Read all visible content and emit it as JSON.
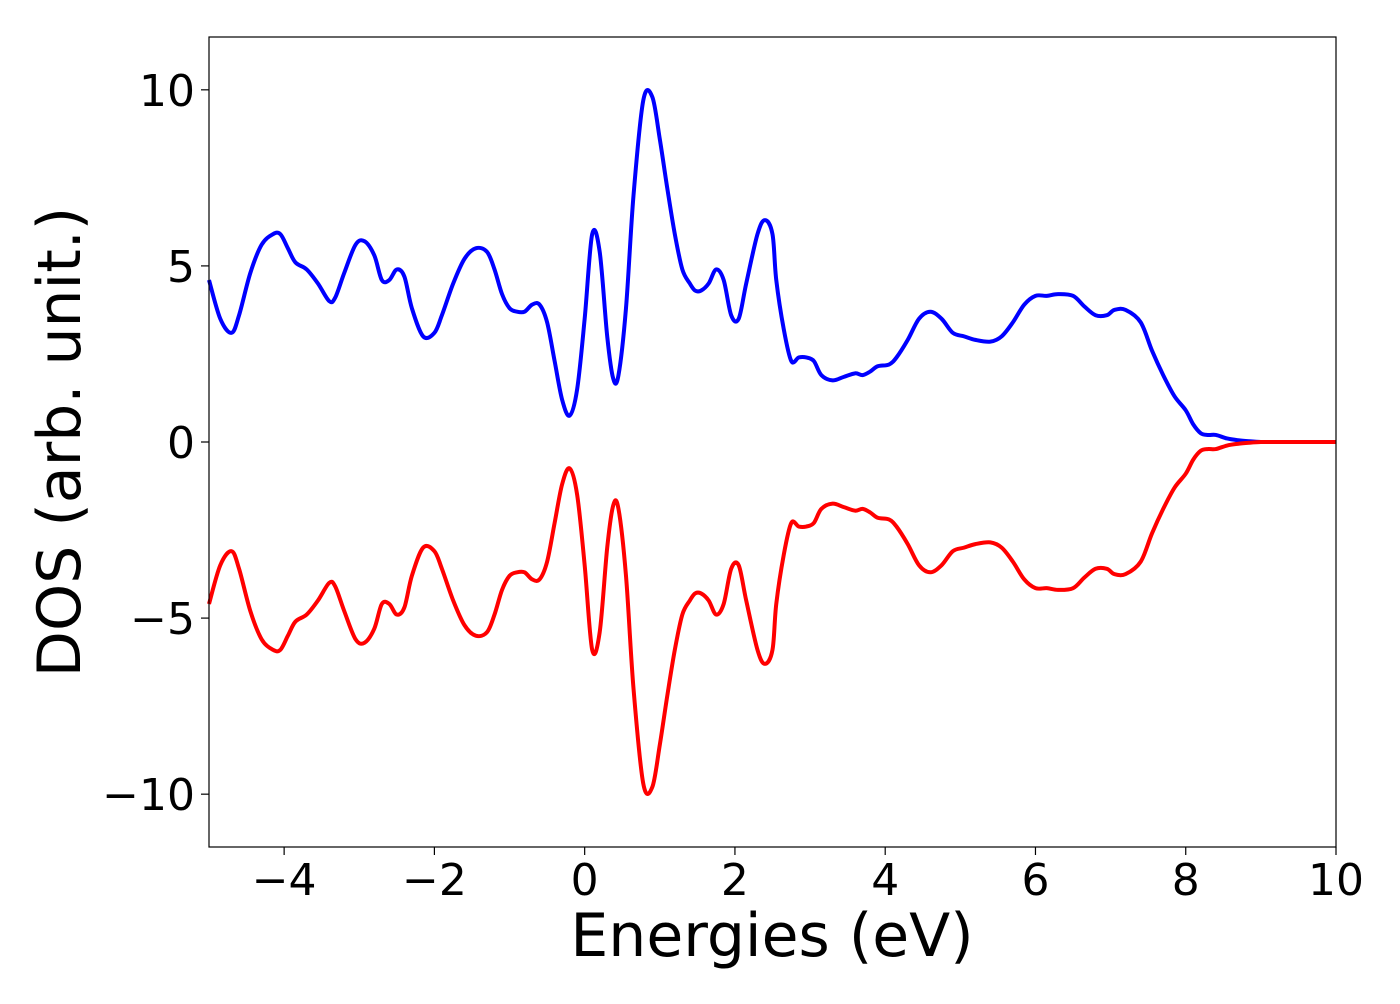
{
  "chart_data": {
    "type": "line",
    "title": "",
    "xlabel": "Energies (eV)",
    "ylabel": "DOS (arb. unit.)",
    "xlim": [
      -5,
      10
    ],
    "ylim": [
      -11.5,
      11.5
    ],
    "xticks": [
      -4,
      -2,
      0,
      2,
      4,
      6,
      8,
      10
    ],
    "xtick_labels": [
      "−4",
      "−2",
      "0",
      "2",
      "4",
      "6",
      "8",
      "10"
    ],
    "yticks": [
      10,
      5,
      0,
      -5,
      -10
    ],
    "ytick_labels": [
      "10",
      "5",
      "0",
      "−5",
      "−10"
    ],
    "grid": false,
    "legend": "none",
    "series": [
      {
        "color": "#0000ff",
        "x": [
          -5.0,
          -4.85,
          -4.7,
          -4.6,
          -4.45,
          -4.3,
          -4.15,
          -4.05,
          -3.95,
          -3.85,
          -3.7,
          -3.55,
          -3.4,
          -3.32,
          -3.2,
          -3.05,
          -2.93,
          -2.8,
          -2.7,
          -2.6,
          -2.5,
          -2.4,
          -2.3,
          -2.15,
          -2.0,
          -1.9,
          -1.75,
          -1.6,
          -1.45,
          -1.3,
          -1.2,
          -1.1,
          -1.0,
          -0.9,
          -0.8,
          -0.7,
          -0.6,
          -0.5,
          -0.4,
          -0.3,
          -0.2,
          -0.1,
          0.0,
          0.1,
          0.2,
          0.3,
          0.38,
          0.45,
          0.55,
          0.65,
          0.78,
          0.9,
          1.0,
          1.1,
          1.2,
          1.3,
          1.4,
          1.47,
          1.55,
          1.65,
          1.75,
          1.85,
          1.95,
          2.05,
          2.15,
          2.3,
          2.4,
          2.5,
          2.55,
          2.65,
          2.75,
          2.85,
          2.95,
          3.05,
          3.15,
          3.3,
          3.45,
          3.6,
          3.7,
          3.8,
          3.9,
          4.05,
          4.15,
          4.3,
          4.45,
          4.6,
          4.75,
          4.9,
          5.05,
          5.2,
          5.4,
          5.55,
          5.7,
          5.85,
          6.0,
          6.15,
          6.3,
          6.5,
          6.65,
          6.8,
          6.95,
          7.05,
          7.2,
          7.4,
          7.55,
          7.7,
          7.85,
          8.0,
          8.1,
          8.2,
          8.3,
          8.4,
          8.55,
          8.7,
          8.85,
          9.0,
          9.15,
          9.3,
          9.45,
          9.6,
          9.8,
          10.0
        ],
        "y": [
          4.6,
          3.5,
          3.1,
          3.6,
          4.8,
          5.6,
          5.9,
          5.9,
          5.5,
          5.1,
          4.9,
          4.5,
          4.0,
          4.1,
          4.8,
          5.6,
          5.7,
          5.3,
          4.6,
          4.6,
          4.9,
          4.7,
          3.8,
          3.0,
          3.1,
          3.6,
          4.5,
          5.2,
          5.5,
          5.4,
          4.9,
          4.2,
          3.8,
          3.7,
          3.7,
          3.9,
          3.9,
          3.4,
          2.3,
          1.2,
          0.75,
          1.5,
          3.5,
          5.9,
          5.4,
          3.0,
          1.8,
          1.9,
          3.8,
          7.0,
          9.7,
          9.8,
          8.6,
          7.2,
          5.9,
          4.9,
          4.5,
          4.3,
          4.3,
          4.5,
          4.9,
          4.6,
          3.6,
          3.5,
          4.5,
          5.9,
          6.3,
          5.9,
          4.6,
          3.2,
          2.3,
          2.4,
          2.4,
          2.3,
          1.9,
          1.75,
          1.85,
          1.95,
          1.9,
          2.0,
          2.15,
          2.2,
          2.4,
          2.9,
          3.5,
          3.7,
          3.5,
          3.1,
          3.0,
          2.9,
          2.85,
          3.0,
          3.4,
          3.9,
          4.15,
          4.15,
          4.2,
          4.15,
          3.85,
          3.6,
          3.6,
          3.75,
          3.75,
          3.4,
          2.6,
          1.9,
          1.3,
          0.9,
          0.5,
          0.25,
          0.2,
          0.2,
          0.1,
          0.05,
          0.02,
          0.0,
          0.0,
          0.0,
          0.0,
          0.0,
          0.0,
          0.0
        ]
      },
      {
        "color": "#ff0000",
        "x": [
          -5.0,
          -4.85,
          -4.7,
          -4.6,
          -4.45,
          -4.3,
          -4.15,
          -4.05,
          -3.95,
          -3.85,
          -3.7,
          -3.55,
          -3.4,
          -3.32,
          -3.2,
          -3.05,
          -2.93,
          -2.8,
          -2.7,
          -2.6,
          -2.5,
          -2.4,
          -2.3,
          -2.15,
          -2.0,
          -1.9,
          -1.75,
          -1.6,
          -1.45,
          -1.3,
          -1.2,
          -1.1,
          -1.0,
          -0.9,
          -0.8,
          -0.7,
          -0.6,
          -0.5,
          -0.4,
          -0.3,
          -0.2,
          -0.1,
          0.0,
          0.1,
          0.2,
          0.3,
          0.38,
          0.45,
          0.55,
          0.65,
          0.78,
          0.9,
          1.0,
          1.1,
          1.2,
          1.3,
          1.4,
          1.47,
          1.55,
          1.65,
          1.75,
          1.85,
          1.95,
          2.05,
          2.15,
          2.3,
          2.4,
          2.5,
          2.55,
          2.65,
          2.75,
          2.85,
          2.95,
          3.05,
          3.15,
          3.3,
          3.45,
          3.6,
          3.7,
          3.8,
          3.9,
          4.05,
          4.15,
          4.3,
          4.45,
          4.6,
          4.75,
          4.9,
          5.05,
          5.2,
          5.4,
          5.55,
          5.7,
          5.85,
          6.0,
          6.15,
          6.3,
          6.5,
          6.65,
          6.8,
          6.95,
          7.05,
          7.2,
          7.4,
          7.55,
          7.7,
          7.85,
          8.0,
          8.1,
          8.2,
          8.3,
          8.4,
          8.55,
          8.7,
          8.85,
          9.0,
          9.15,
          9.3,
          9.45,
          9.6,
          9.8,
          10.0
        ],
        "y": [
          -4.6,
          -3.5,
          -3.1,
          -3.6,
          -4.8,
          -5.6,
          -5.9,
          -5.9,
          -5.5,
          -5.1,
          -4.9,
          -4.5,
          -4.0,
          -4.1,
          -4.8,
          -5.6,
          -5.7,
          -5.3,
          -4.6,
          -4.6,
          -4.9,
          -4.7,
          -3.8,
          -3.0,
          -3.1,
          -3.6,
          -4.5,
          -5.2,
          -5.5,
          -5.4,
          -4.9,
          -4.2,
          -3.8,
          -3.7,
          -3.7,
          -3.9,
          -3.9,
          -3.4,
          -2.3,
          -1.2,
          -0.75,
          -1.5,
          -3.5,
          -5.9,
          -5.4,
          -3.0,
          -1.8,
          -1.9,
          -3.8,
          -7.0,
          -9.7,
          -9.8,
          -8.6,
          -7.2,
          -5.9,
          -4.9,
          -4.5,
          -4.3,
          -4.3,
          -4.5,
          -4.9,
          -4.6,
          -3.6,
          -3.5,
          -4.5,
          -5.9,
          -6.3,
          -5.9,
          -4.6,
          -3.2,
          -2.3,
          -2.4,
          -2.4,
          -2.3,
          -1.9,
          -1.75,
          -1.85,
          -1.95,
          -1.9,
          -2.0,
          -2.15,
          -2.2,
          -2.4,
          -2.9,
          -3.5,
          -3.7,
          -3.5,
          -3.1,
          -3.0,
          -2.9,
          -2.85,
          -3.0,
          -3.4,
          -3.9,
          -4.15,
          -4.15,
          -4.2,
          -4.15,
          -3.85,
          -3.6,
          -3.6,
          -3.75,
          -3.75,
          -3.4,
          -2.6,
          -1.9,
          -1.3,
          -0.9,
          -0.5,
          -0.25,
          -0.2,
          -0.2,
          -0.1,
          -0.05,
          -0.02,
          0.0,
          0.0,
          0.0,
          0.0,
          0.0,
          0.0,
          0.0
        ]
      }
    ]
  }
}
